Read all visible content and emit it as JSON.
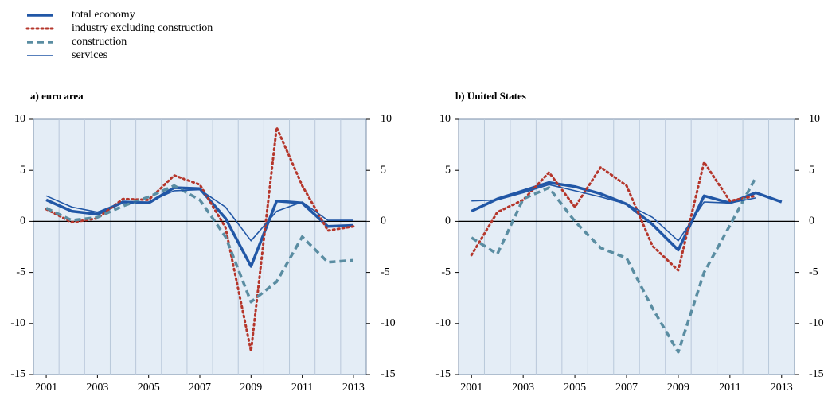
{
  "chart_data": [
    {
      "type": "line",
      "title": "a) euro area",
      "x": [
        2001,
        2002,
        2003,
        2004,
        2005,
        2006,
        2007,
        2008,
        2009,
        2010,
        2011,
        2012,
        2013
      ],
      "xlim": [
        2000.5,
        2013.5
      ],
      "xticks": [
        2001,
        2003,
        2005,
        2007,
        2009,
        2011,
        2013
      ],
      "ylim": [
        -15,
        10
      ],
      "yticks": [
        -15,
        -10,
        -5,
        0,
        5,
        10
      ],
      "series": [
        {
          "name": "total economy",
          "color": "#2157a6",
          "values": [
            2.1,
            1.0,
            0.7,
            1.9,
            1.8,
            3.3,
            3.2,
            0.3,
            -4.4,
            2.0,
            1.8,
            -0.5,
            -0.4
          ]
        },
        {
          "name": "industry excluding construction",
          "color": "#b5362b",
          "values": [
            1.2,
            -0.1,
            0.3,
            2.2,
            2.1,
            4.5,
            3.6,
            -0.6,
            -12.7,
            9.2,
            3.5,
            -0.9,
            -0.5
          ]
        },
        {
          "name": "construction",
          "color": "#5a8da2",
          "values": [
            1.3,
            0.1,
            0.4,
            1.5,
            2.4,
            3.5,
            2.1,
            -1.5,
            -7.9,
            -5.9,
            -1.5,
            -4.0,
            -3.8
          ]
        },
        {
          "name": "services",
          "color": "#2157a6",
          "values": [
            2.5,
            1.4,
            0.9,
            1.9,
            1.9,
            3.0,
            3.1,
            1.4,
            -1.9,
            1.0,
            1.9,
            0.1,
            0.1
          ]
        }
      ]
    },
    {
      "type": "line",
      "title": "b) United States",
      "x": [
        2001,
        2002,
        2003,
        2004,
        2005,
        2006,
        2007,
        2008,
        2009,
        2010,
        2011,
        2012,
        2013
      ],
      "xlim": [
        2000.5,
        2013.5
      ],
      "xticks": [
        2001,
        2003,
        2005,
        2007,
        2009,
        2011,
        2013
      ],
      "ylim": [
        -15,
        10
      ],
      "yticks": [
        -15,
        -10,
        -5,
        0,
        5,
        10
      ],
      "series": [
        {
          "color": "#2157a6",
          "values": [
            1.0,
            2.2,
            3.0,
            3.8,
            3.4,
            2.7,
            1.7,
            -0.3,
            -2.8,
            2.5,
            1.8,
            2.8,
            1.9
          ]
        },
        {
          "color": "#b5362b",
          "values": [
            -3.3,
            0.9,
            2.1,
            4.8,
            1.4,
            5.3,
            3.5,
            -2.4,
            -4.8,
            5.8,
            2.0,
            2.5,
            null
          ]
        },
        {
          "color": "#5a8da2",
          "values": [
            -1.6,
            -3.2,
            2.2,
            3.3,
            0.0,
            -2.6,
            -3.6,
            -8.5,
            -12.8,
            -5.0,
            -0.4,
            4.3,
            null
          ]
        },
        {
          "color": "#2157a6",
          "values": [
            2.0,
            2.1,
            2.8,
            3.6,
            3.0,
            2.4,
            1.7,
            0.4,
            -1.9,
            1.9,
            1.8,
            2.3,
            null
          ]
        }
      ]
    }
  ]
}
